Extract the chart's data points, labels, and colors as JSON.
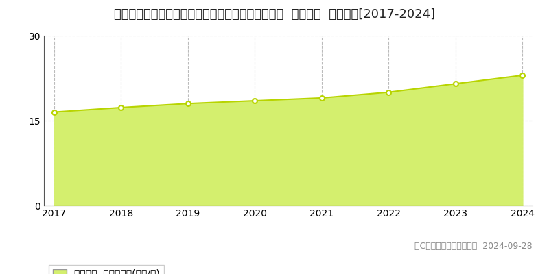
{
  "title": "宮城県仙台市青葉区双葉ケ丘１丁目１１８番１０４  基準地価  地価推移[2017-2024]",
  "years": [
    2017,
    2018,
    2019,
    2020,
    2021,
    2022,
    2023,
    2024
  ],
  "values": [
    16.5,
    17.3,
    18.0,
    18.5,
    19.0,
    20.0,
    21.5,
    23.0
  ],
  "ylim": [
    0,
    30
  ],
  "yticks": [
    0,
    15,
    30
  ],
  "fill_color": "#d4ef6e",
  "line_color": "#b8d400",
  "marker_color": "#ffffff",
  "marker_edge_color": "#b8d400",
  "grid_color": "#bbbbbb",
  "bg_color": "#ffffff",
  "legend_label": "基準地価  平均坪単価(万円/坪)",
  "copyright_text": "（C）土地価格ドットコム  2024-09-28",
  "title_fontsize": 13,
  "axis_fontsize": 10,
  "legend_fontsize": 10,
  "copyright_fontsize": 9
}
